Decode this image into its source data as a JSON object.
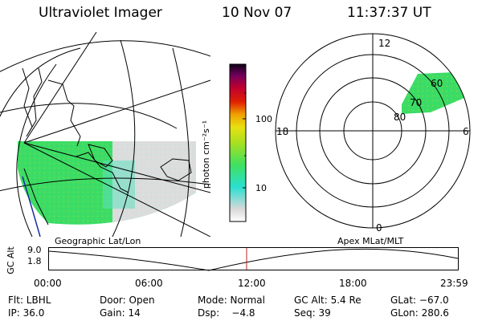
{
  "header": {
    "instrument": "Ultraviolet Imager",
    "date": "10 Nov 07",
    "time": "11:37:37 UT"
  },
  "colorbar": {
    "unit_label": "photon cm⁻²s⁻¹",
    "ticks": [
      "100",
      "10"
    ]
  },
  "panels": {
    "geo_label": "Geographic Lat/Lon",
    "apex_label": "Apex  MLat/MLT"
  },
  "polar": {
    "mlt_labels": [
      "12",
      "18",
      "6",
      "0"
    ],
    "mlat_labels": [
      "60",
      "70",
      "80"
    ]
  },
  "altitude_plot": {
    "axis_label": "GC Alt",
    "ticks": [
      "9.0",
      "1.8"
    ],
    "time_labels": [
      "00:00",
      "06:00",
      "12:00",
      "18:00",
      "23:59"
    ]
  },
  "info": {
    "filter": "Flt: LBHL",
    "door": "Door: Open",
    "mode": "Mode: Normal",
    "gc_alt": "GC Alt: 5.4 Re",
    "glat": "GLat: −67.0",
    "ip": "IP: 36.0",
    "gain": "Gain: 14",
    "dsp": "Dsp:    −4.8",
    "seq": "Seq: 39",
    "glon": "GLon: 280.6"
  },
  "colors": {
    "colorbar_stops": [
      "#ffffff",
      "#d8d8d8",
      "#29e0d0",
      "#40e060",
      "#a8e020",
      "#e8e010",
      "#f0a000",
      "#e02000",
      "#c00030",
      "#70005a",
      "#100018"
    ]
  }
}
